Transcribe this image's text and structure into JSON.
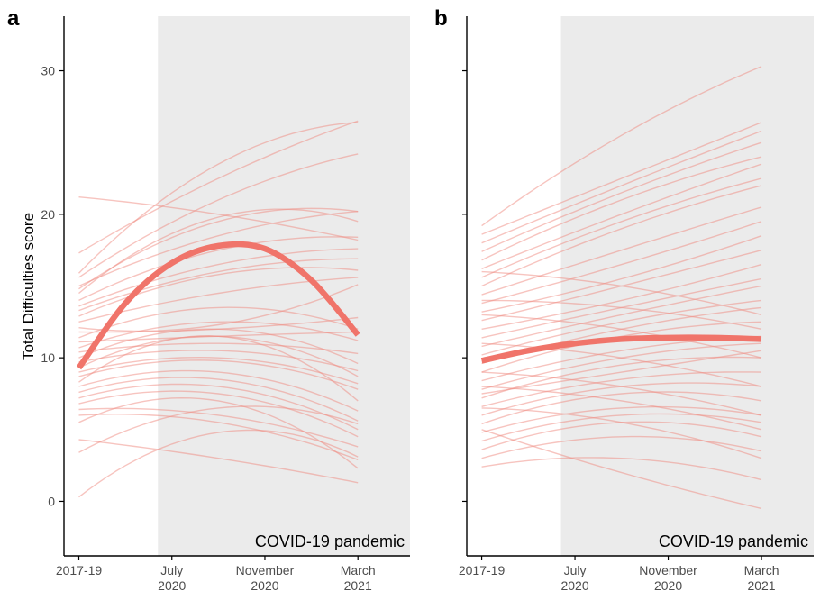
{
  "colors": {
    "individual": "#ef8a80",
    "mean": "#f0746a",
    "shade": "#ebebeb",
    "axis": "#000000"
  },
  "chart_data": [
    {
      "type": "line",
      "panel_label": "a",
      "xlabel": "",
      "ylabel": "Total Difficulties score",
      "x_ticks": [
        {
          "line1": "2017-19",
          "line2": "",
          "t": 0
        },
        {
          "line1": "July",
          "line2": "2020",
          "t": 1
        },
        {
          "line1": "November",
          "line2": "2020",
          "t": 2
        },
        {
          "line1": "March",
          "line2": "2021",
          "t": 3
        }
      ],
      "xlim": [
        -0.16,
        3.56
      ],
      "y_ticks": [
        0,
        10,
        20,
        30
      ],
      "ylim": [
        -3.8,
        33.8
      ],
      "shaded_region": {
        "x_start": 0.85,
        "x_end": 3.56,
        "label": "COVID-19 pandemic"
      },
      "mean_curve": {
        "t": [
          0,
          0.5,
          1,
          1.5,
          2,
          2.5,
          3
        ],
        "y": [
          9.3,
          13.8,
          16.6,
          17.8,
          17.6,
          15.4,
          11.6
        ]
      },
      "individual_curves": [
        [
          21.2,
          20.0,
          18.2
        ],
        [
          17.3,
          22.5,
          26.5
        ],
        [
          15.9,
          23.5,
          26.4
        ],
        [
          15.6,
          21.0,
          24.2
        ],
        [
          15.0,
          18.5,
          20.2
        ],
        [
          14.8,
          19.5,
          20.2
        ],
        [
          14.5,
          19.8,
          19.5
        ],
        [
          14.0,
          17.5,
          18.4
        ],
        [
          13.6,
          16.5,
          17.6
        ],
        [
          13.3,
          16.0,
          16.9
        ],
        [
          12.9,
          15.8,
          16.1
        ],
        [
          12.5,
          14.5,
          15.6
        ],
        [
          12.1,
          12.3,
          15.1
        ],
        [
          11.8,
          12.0,
          12.8
        ],
        [
          11.4,
          13.5,
          12.0
        ],
        [
          11.1,
          11.5,
          11.8
        ],
        [
          10.7,
          12.5,
          11.2
        ],
        [
          10.4,
          11.0,
          10.3
        ],
        [
          10.0,
          12.0,
          9.6
        ],
        [
          9.7,
          10.5,
          9.1
        ],
        [
          9.3,
          11.5,
          8.7
        ],
        [
          9.0,
          10.0,
          8.2
        ],
        [
          8.7,
          9.8,
          7.8
        ],
        [
          8.3,
          11.5,
          7.0
        ],
        [
          8.0,
          9.0,
          6.3
        ],
        [
          7.6,
          8.5,
          5.6
        ],
        [
          7.2,
          8.0,
          5.0
        ],
        [
          6.8,
          7.5,
          4.5
        ],
        [
          6.4,
          6.0,
          3.8
        ],
        [
          6.0,
          5.5,
          2.9
        ],
        [
          5.5,
          7.0,
          2.3
        ],
        [
          4.3,
          3.0,
          1.3
        ],
        [
          3.4,
          6.5,
          5.4
        ],
        [
          0.3,
          4.8,
          3.1
        ]
      ],
      "annotation": "COVID-19 pandemic"
    },
    {
      "type": "line",
      "panel_label": "b",
      "xlabel": "",
      "ylabel": "",
      "x_ticks": [
        {
          "line1": "2017-19",
          "line2": "",
          "t": 0
        },
        {
          "line1": "July",
          "line2": "2020",
          "t": 1
        },
        {
          "line1": "November",
          "line2": "2020",
          "t": 2
        },
        {
          "line1": "March",
          "line2": "2021",
          "t": 3
        }
      ],
      "xlim": [
        -0.16,
        3.56
      ],
      "y_ticks": [
        0,
        10,
        20,
        30
      ],
      "ylim": [
        -3.8,
        33.8
      ],
      "shaded_region": {
        "x_start": 0.85,
        "x_end": 3.56,
        "label": "COVID-19 pandemic"
      },
      "mean_curve": {
        "t": [
          0,
          0.5,
          1,
          1.5,
          2,
          2.5,
          3
        ],
        "y": [
          9.8,
          10.5,
          11.0,
          11.3,
          11.4,
          11.4,
          11.3
        ]
      },
      "individual_curves": [
        [
          19.2,
          25.5,
          30.3
        ],
        [
          18.6,
          22.5,
          26.4
        ],
        [
          18.0,
          22.0,
          25.8
        ],
        [
          17.4,
          21.5,
          25.0
        ],
        [
          16.8,
          21.0,
          24.0
        ],
        [
          16.2,
          20.0,
          23.5
        ],
        [
          15.6,
          19.5,
          22.5
        ],
        [
          15.0,
          19.0,
          22.0
        ],
        [
          14.4,
          17.5,
          20.5
        ],
        [
          13.8,
          16.5,
          19.5
        ],
        [
          13.2,
          15.5,
          18.5
        ],
        [
          12.6,
          15.0,
          17.5
        ],
        [
          12.0,
          14.0,
          16.5
        ],
        [
          11.4,
          13.5,
          15.5
        ],
        [
          10.8,
          13.0,
          15.0
        ],
        [
          10.2,
          12.5,
          14.0
        ],
        [
          9.6,
          12.0,
          13.5
        ],
        [
          9.0,
          11.5,
          12.5
        ],
        [
          8.4,
          10.5,
          11.5
        ],
        [
          7.8,
          10.0,
          11.0
        ],
        [
          7.2,
          9.5,
          10.0
        ],
        [
          6.6,
          8.5,
          9.0
        ],
        [
          6.0,
          8.0,
          8.0
        ],
        [
          5.4,
          7.5,
          7.0
        ],
        [
          4.8,
          6.5,
          6.0
        ],
        [
          4.2,
          6.0,
          5.5
        ],
        [
          3.6,
          5.5,
          4.5
        ],
        [
          3.0,
          4.5,
          3.5
        ],
        [
          2.4,
          3.0,
          1.5
        ],
        [
          5.0,
          2.0,
          -0.5
        ],
        [
          8.0,
          7.0,
          5.0
        ],
        [
          11.0,
          10.0,
          8.0
        ],
        [
          13.0,
          12.0,
          10.0
        ],
        [
          9.0,
          8.0,
          6.0
        ],
        [
          6.5,
          5.5,
          3.0
        ],
        [
          16.0,
          15.0,
          13.0
        ],
        [
          14.0,
          13.5,
          12.0
        ],
        [
          7.5,
          9.0,
          10.5
        ]
      ],
      "annotation": "COVID-19 pandemic"
    }
  ]
}
